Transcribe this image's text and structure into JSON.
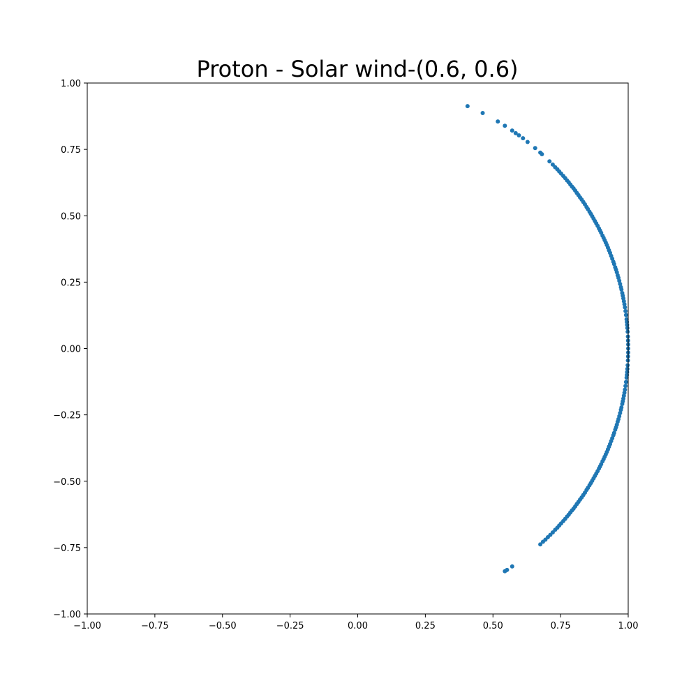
{
  "chart_data": {
    "type": "scatter",
    "title": "Proton - Solar wind-(0.6, 0.6)",
    "xlabel": "",
    "ylabel": "",
    "xlim": [
      -1.0,
      1.0
    ],
    "ylim": [
      -1.0,
      1.0
    ],
    "x_ticks": [
      -1.0,
      -0.75,
      -0.5,
      -0.25,
      0.0,
      0.25,
      0.5,
      0.75,
      1.0
    ],
    "y_ticks": [
      -1.0,
      -0.75,
      -0.5,
      -0.25,
      0.0,
      0.25,
      0.5,
      0.75,
      1.0
    ],
    "x_tick_labels": [
      "−1.00",
      "−0.75",
      "−0.50",
      "−0.25",
      "0.00",
      "0.25",
      "0.50",
      "0.75",
      "1.00"
    ],
    "y_tick_labels": [
      "−1.00",
      "−0.75",
      "−0.50",
      "−0.25",
      "0.00",
      "0.25",
      "0.50",
      "0.75",
      "1.00"
    ],
    "grid": false,
    "legend": "none",
    "color": "#1f77b4",
    "series": [
      {
        "points": [
          [
            0.406,
            0.913
          ],
          [
            0.462,
            0.887
          ],
          [
            0.518,
            0.855
          ],
          [
            0.544,
            0.839
          ],
          [
            0.571,
            0.821
          ],
          [
            0.584,
            0.811
          ],
          [
            0.596,
            0.803
          ],
          [
            0.611,
            0.792
          ],
          [
            0.628,
            0.778
          ],
          [
            0.656,
            0.755
          ],
          [
            0.675,
            0.738
          ],
          [
            0.681,
            0.732
          ],
          [
            0.709,
            0.705
          ],
          [
            0.721,
            0.693
          ],
          [
            0.73,
            0.683
          ],
          [
            0.738,
            0.675
          ],
          [
            0.745,
            0.667
          ],
          [
            0.752,
            0.659
          ],
          [
            0.76,
            0.65
          ],
          [
            0.767,
            0.642
          ],
          [
            0.774,
            0.633
          ],
          [
            0.78,
            0.626
          ],
          [
            0.786,
            0.618
          ],
          [
            0.792,
            0.61
          ],
          [
            0.798,
            0.603
          ],
          [
            0.804,
            0.595
          ],
          [
            0.81,
            0.586
          ],
          [
            0.816,
            0.578
          ],
          [
            0.822,
            0.569
          ],
          [
            0.828,
            0.561
          ],
          [
            0.834,
            0.552
          ],
          [
            0.84,
            0.543
          ],
          [
            0.846,
            0.533
          ],
          [
            0.851,
            0.525
          ],
          [
            0.857,
            0.515
          ],
          [
            0.862,
            0.507
          ],
          [
            0.867,
            0.498
          ],
          [
            0.872,
            0.489
          ],
          [
            0.877,
            0.48
          ],
          [
            0.882,
            0.471
          ],
          [
            0.887,
            0.462
          ],
          [
            0.892,
            0.452
          ],
          [
            0.896,
            0.444
          ],
          [
            0.9,
            0.436
          ],
          [
            0.905,
            0.425
          ],
          [
            0.909,
            0.417
          ],
          [
            0.913,
            0.408
          ],
          [
            0.917,
            0.399
          ],
          [
            0.921,
            0.39
          ],
          [
            0.925,
            0.38
          ],
          [
            0.929,
            0.37
          ],
          [
            0.933,
            0.36
          ],
          [
            0.937,
            0.349
          ],
          [
            0.941,
            0.338
          ],
          [
            0.945,
            0.327
          ],
          [
            0.948,
            0.318
          ],
          [
            0.952,
            0.306
          ],
          [
            0.955,
            0.297
          ],
          [
            0.958,
            0.287
          ],
          [
            0.961,
            0.276
          ],
          [
            0.964,
            0.266
          ],
          [
            0.967,
            0.255
          ],
          [
            0.97,
            0.243
          ],
          [
            0.973,
            0.231
          ],
          [
            0.975,
            0.222
          ],
          [
            0.978,
            0.209
          ],
          [
            0.98,
            0.199
          ],
          [
            0.982,
            0.189
          ],
          [
            0.984,
            0.178
          ],
          [
            0.986,
            0.167
          ],
          [
            0.988,
            0.155
          ],
          [
            0.99,
            0.141
          ],
          [
            0.992,
            0.126
          ],
          [
            0.994,
            0.11
          ],
          [
            0.995,
            0.1
          ],
          [
            0.996,
            0.089
          ],
          [
            0.997,
            0.077
          ],
          [
            0.998,
            0.063
          ],
          [
            0.999,
            0.045
          ],
          [
            0.9995,
            0.03
          ],
          [
            1.0,
            0.015
          ],
          [
            1.0,
            0.0
          ],
          [
            1.0,
            -0.015
          ],
          [
            0.9995,
            -0.03
          ],
          [
            0.999,
            -0.045
          ],
          [
            0.998,
            -0.063
          ],
          [
            0.997,
            -0.077
          ],
          [
            0.996,
            -0.089
          ],
          [
            0.995,
            -0.1
          ],
          [
            0.994,
            -0.11
          ],
          [
            0.992,
            -0.126
          ],
          [
            0.99,
            -0.141
          ],
          [
            0.988,
            -0.155
          ],
          [
            0.986,
            -0.167
          ],
          [
            0.984,
            -0.178
          ],
          [
            0.982,
            -0.189
          ],
          [
            0.98,
            -0.199
          ],
          [
            0.978,
            -0.209
          ],
          [
            0.975,
            -0.222
          ],
          [
            0.973,
            -0.231
          ],
          [
            0.97,
            -0.243
          ],
          [
            0.967,
            -0.255
          ],
          [
            0.964,
            -0.266
          ],
          [
            0.961,
            -0.276
          ],
          [
            0.958,
            -0.287
          ],
          [
            0.955,
            -0.297
          ],
          [
            0.952,
            -0.306
          ],
          [
            0.948,
            -0.318
          ],
          [
            0.945,
            -0.327
          ],
          [
            0.941,
            -0.338
          ],
          [
            0.937,
            -0.349
          ],
          [
            0.933,
            -0.36
          ],
          [
            0.929,
            -0.37
          ],
          [
            0.925,
            -0.38
          ],
          [
            0.921,
            -0.39
          ],
          [
            0.917,
            -0.399
          ],
          [
            0.913,
            -0.408
          ],
          [
            0.909,
            -0.417
          ],
          [
            0.905,
            -0.425
          ],
          [
            0.9,
            -0.436
          ],
          [
            0.896,
            -0.444
          ],
          [
            0.892,
            -0.452
          ],
          [
            0.887,
            -0.462
          ],
          [
            0.882,
            -0.471
          ],
          [
            0.877,
            -0.48
          ],
          [
            0.872,
            -0.489
          ],
          [
            0.867,
            -0.498
          ],
          [
            0.862,
            -0.507
          ],
          [
            0.857,
            -0.515
          ],
          [
            0.851,
            -0.525
          ],
          [
            0.846,
            -0.533
          ],
          [
            0.84,
            -0.543
          ],
          [
            0.834,
            -0.552
          ],
          [
            0.828,
            -0.561
          ],
          [
            0.822,
            -0.569
          ],
          [
            0.816,
            -0.578
          ],
          [
            0.81,
            -0.586
          ],
          [
            0.804,
            -0.595
          ],
          [
            0.798,
            -0.603
          ],
          [
            0.792,
            -0.61
          ],
          [
            0.786,
            -0.618
          ],
          [
            0.78,
            -0.626
          ],
          [
            0.774,
            -0.633
          ],
          [
            0.767,
            -0.642
          ],
          [
            0.76,
            -0.65
          ],
          [
            0.752,
            -0.659
          ],
          [
            0.745,
            -0.667
          ],
          [
            0.738,
            -0.675
          ],
          [
            0.73,
            -0.683
          ],
          [
            0.721,
            -0.693
          ],
          [
            0.712,
            -0.702
          ],
          [
            0.703,
            -0.711
          ],
          [
            0.694,
            -0.72
          ],
          [
            0.685,
            -0.728
          ],
          [
            0.675,
            -0.738
          ],
          [
            0.571,
            -0.821
          ],
          [
            0.552,
            -0.834
          ],
          [
            0.544,
            -0.839
          ]
        ]
      }
    ]
  }
}
